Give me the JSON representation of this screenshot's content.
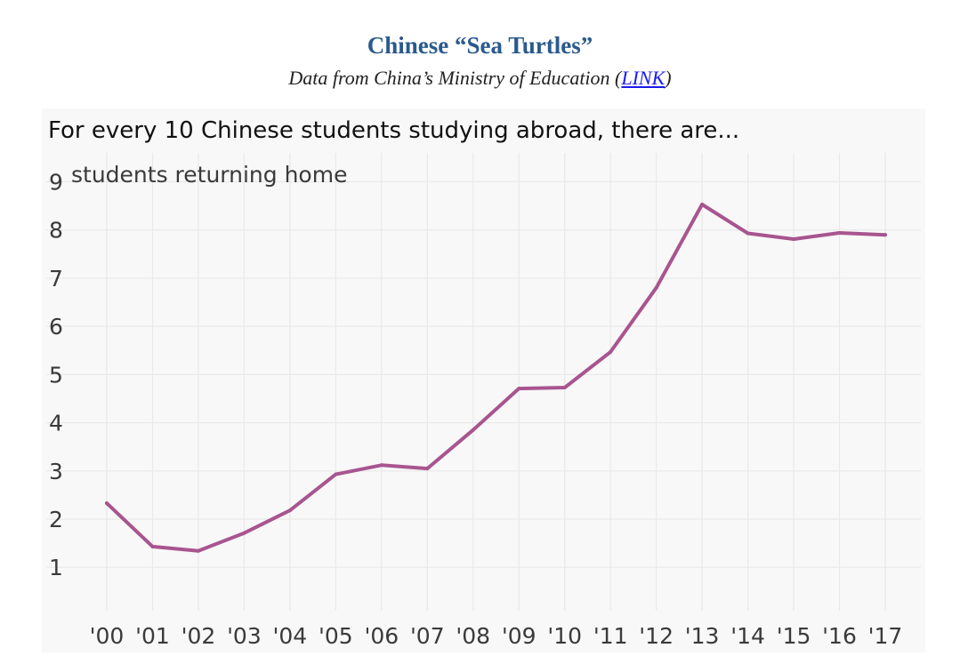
{
  "header": {
    "title": "Chinese “Sea Turtles”",
    "subtitle_prefix": "Data from China’s Ministry of Education (",
    "subtitle_link": "LINK",
    "subtitle_suffix": ")"
  },
  "chart_data": {
    "type": "line",
    "title": "For every 10 Chinese students studying abroad, there are...",
    "ylabel": "students returning home",
    "x": [
      "'00",
      "'01",
      "'02",
      "'03",
      "'04",
      "'05",
      "'06",
      "'07",
      "'08",
      "'09",
      "'10",
      "'11",
      "'12",
      "'13",
      "'14",
      "'15",
      "'16",
      "'17"
    ],
    "series": [
      {
        "values": [
          2.33,
          1.43,
          1.34,
          1.71,
          2.18,
          2.93,
          3.12,
          3.05,
          3.85,
          4.71,
          4.73,
          5.47,
          6.8,
          8.53,
          7.93,
          7.81,
          7.94,
          7.9
        ],
        "color": "#a8558f"
      }
    ],
    "yticks": [
      1,
      2,
      3,
      4,
      5,
      6,
      7,
      8,
      9
    ],
    "ylim": [
      0.1,
      9.6
    ],
    "grid": true,
    "legend": "none"
  }
}
